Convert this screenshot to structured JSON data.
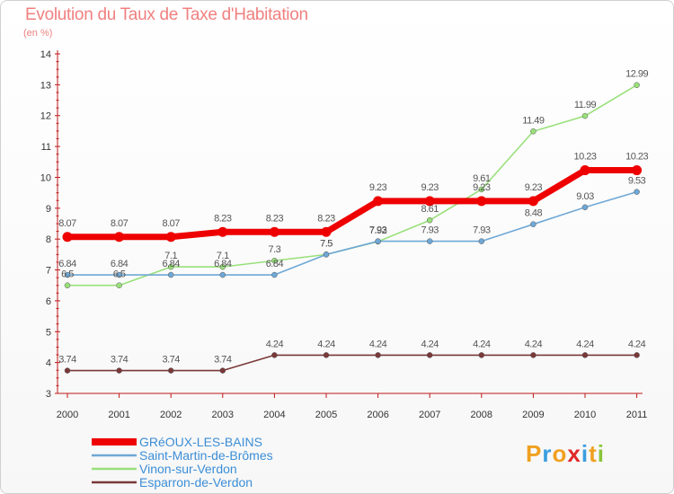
{
  "title": "Evolution du Taux de Taxe d'Habitation",
  "subtitle": "(en %)",
  "logo_text": "Proxiti",
  "colors": {
    "title": "#f08080",
    "axis": "#c01818",
    "legend_text": "#3c8ed6"
  },
  "chart_data": {
    "type": "line",
    "x": [
      "2000",
      "2001",
      "2002",
      "2003",
      "2004",
      "2005",
      "2006",
      "2007",
      "2008",
      "2009",
      "2010",
      "2011"
    ],
    "ylim": [
      3,
      14
    ],
    "yticks": [
      3,
      4,
      5,
      6,
      7,
      8,
      9,
      10,
      11,
      12,
      13,
      14
    ],
    "grid": false,
    "legend_placement": "bottom-left",
    "series": [
      {
        "name": "GRéOUX-LES-BAINS",
        "color": "#ee0000",
        "width": 7,
        "values": [
          8.07,
          8.07,
          8.07,
          8.23,
          8.23,
          8.23,
          9.23,
          9.23,
          9.23,
          9.23,
          10.23,
          10.23
        ],
        "labels": [
          "8.07",
          "8.07",
          "8.07",
          "8.23",
          "8.23",
          "8.23",
          "9.23",
          "9.23",
          "9.23",
          "9.23",
          "10.23",
          "10.23"
        ]
      },
      {
        "name": "Saint-Martin-de-Brômes",
        "color": "#6fa8d6",
        "width": 1.6,
        "values": [
          6.84,
          6.84,
          6.84,
          6.84,
          6.84,
          7.5,
          7.93,
          7.93,
          7.93,
          8.48,
          9.03,
          9.53
        ],
        "labels": [
          "6.84",
          "6.84",
          "6.84",
          "6.84",
          "6.84",
          "7.5",
          "7.93",
          "7.93",
          "7.93",
          "8.48",
          "9.03",
          "9.53"
        ]
      },
      {
        "name": "Vinon-sur-Verdon",
        "color": "#99e07a",
        "width": 1.6,
        "values": [
          6.5,
          6.5,
          7.1,
          7.1,
          7.3,
          7.5,
          7.92,
          8.61,
          9.61,
          11.49,
          11.99,
          12.99
        ],
        "labels": [
          "6.5",
          "6.5",
          "7.1",
          "7.1",
          "7.3",
          "7.5",
          "7.92",
          "8.61",
          "9.61",
          "11.49",
          "11.99",
          "12.99"
        ]
      },
      {
        "name": "Esparron-de-Verdon",
        "color": "#7a3838",
        "width": 1.6,
        "values": [
          3.74,
          3.74,
          3.74,
          3.74,
          4.24,
          4.24,
          4.24,
          4.24,
          4.24,
          4.24,
          4.24,
          4.24
        ],
        "labels": [
          "3.74",
          "3.74",
          "3.74",
          "3.74",
          "4.24",
          "4.24",
          "4.24",
          "4.24",
          "4.24",
          "4.24",
          "4.24",
          "4.24"
        ]
      }
    ]
  }
}
